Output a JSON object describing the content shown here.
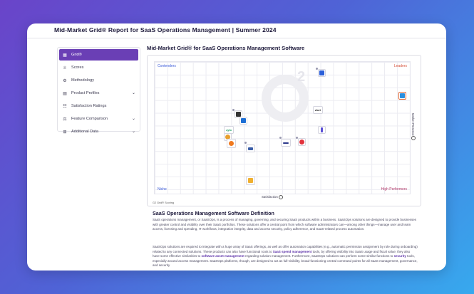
{
  "header": {
    "title": "Mid-Market Grid® Report for SaaS Operations Management | Summer 2024"
  },
  "sidebar": {
    "items": [
      {
        "label": "Grid®",
        "icon": "grid-icon",
        "active": true,
        "expandable": false
      },
      {
        "label": "Scores",
        "icon": "trophy-icon",
        "active": false,
        "expandable": false
      },
      {
        "label": "Methodology",
        "icon": "cog-icon",
        "active": false,
        "expandable": false
      },
      {
        "label": "Product Profiles",
        "icon": "document-icon",
        "active": false,
        "expandable": true
      },
      {
        "label": "Satisfaction Ratings",
        "icon": "rating-icon",
        "active": false,
        "expandable": false
      },
      {
        "label": "Feature Comparison",
        "icon": "scale-icon",
        "active": false,
        "expandable": true
      },
      {
        "label": "Additional Data",
        "icon": "data-icon",
        "active": false,
        "expandable": true
      }
    ]
  },
  "main": {
    "title": "Mid-Market Grid® for SaaS Operations Management Software",
    "grid": {
      "quadrants": {
        "top_left": "Contenders",
        "top_right": "Leaders",
        "bottom_left": "Niche",
        "bottom_right": "High Performers"
      },
      "x_axis": "Satisfaction",
      "y_axis": "Market Presence",
      "logo_labels": {
        "zluri": "zluri",
        "zylo": "zylo"
      },
      "scoring": "G2 Grid® Scoring"
    },
    "definition": {
      "title": "SaaS Operations Management Software Definition",
      "p1": "SaaS operations management, or SaaSOps, is a process of managing, governing, and securing SaaS products within a business. SaaSOps solutions are designed to provide businesses with greater control and visibility over their SaaS portfolios. These solutions offer a central point from which software administrators can—among other things—manage user and team access, licensing and spending, IT workflows, integration integrity, data and access security, policy adherence, and SaaS-related process automation.",
      "p2_a": "SaaSOps solutions are required to integrate with a huge array of SaaS offerings, as well as offer automation capabilities (e.g., automatic permission assignment by role during onboarding) related to any connected solutions. These products can also have functional roots to ",
      "p2_link1": "SaaS spend management",
      "p2_b": " tools, by offering visibility into SaaS usage and fiscal value; they also have some effective similarities to ",
      "p2_link2": "software asset management",
      "p2_c": " regarding solution management. Furthermore, SaaSOps solutions can perform some similar functions to ",
      "p2_link3": "security",
      "p2_d": " tools, especially around access management. SaaSOps platforms, though, are designed to act as full-visibility, broad-functioning central command points for all SaaS management, governance, and security"
    }
  },
  "colors": {
    "accent": "#6a3fb5",
    "contenders": "#3c5bd9",
    "leaders": "#d6503a"
  }
}
